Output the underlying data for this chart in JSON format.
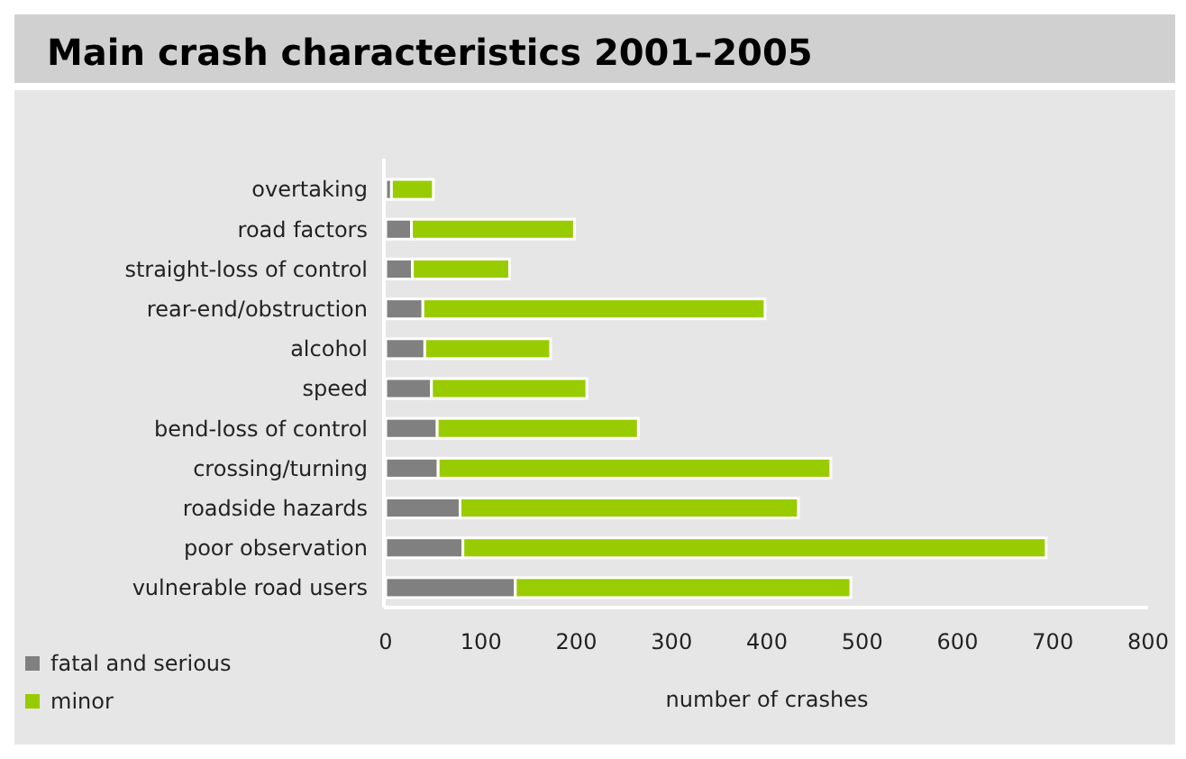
{
  "chart_data": {
    "type": "bar",
    "title": "Main crash characteristics 2001–2005",
    "xlabel": "number of crashes",
    "orientation": "horizontal",
    "stacked": true,
    "categories": [
      "overtaking",
      "road factors",
      "straight-loss of control",
      "rear-end/obstruction",
      "alcohol",
      "speed",
      "bend-loss of control",
      "crossing/turning",
      "roadside hazards",
      "poor observation",
      "vulnerable road users"
    ],
    "series": [
      {
        "name": "fatal and serious",
        "color": "#808080",
        "values": [
          6,
          27,
          28,
          39,
          41,
          48,
          54,
          55,
          78,
          81,
          136
        ]
      },
      {
        "name": "minor",
        "color": "#99cc00",
        "values": [
          44,
          171,
          102,
          359,
          132,
          163,
          211,
          412,
          355,
          612,
          352
        ]
      }
    ],
    "xlim": [
      0,
      800
    ],
    "xticks": [
      0,
      100,
      200,
      300,
      400,
      500,
      600,
      700,
      800
    ],
    "grid": false,
    "legend": "bottom left"
  }
}
